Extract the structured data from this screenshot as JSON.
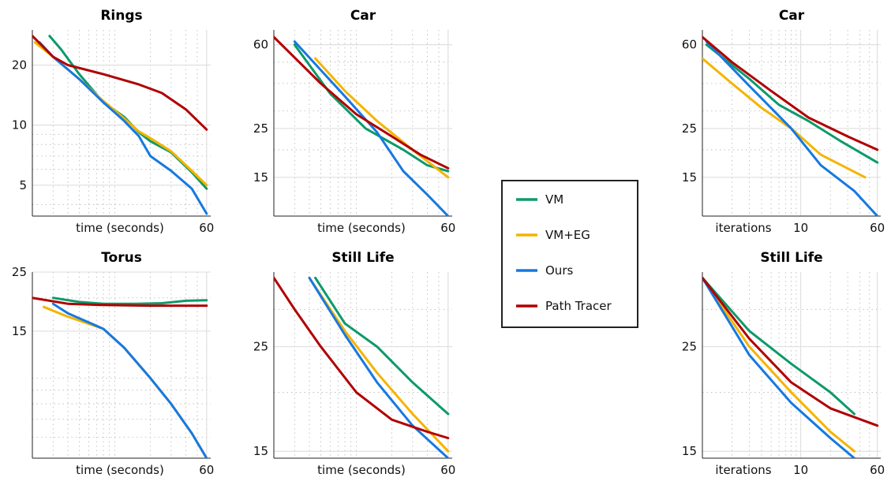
{
  "legend": {
    "entries": [
      {
        "name": "VM",
        "color": "#0d9a6a"
      },
      {
        "name": "VM+EG",
        "color": "#f4b400"
      },
      {
        "name": "Ours",
        "color": "#1679e0"
      },
      {
        "name": "Path Tracer",
        "color": "#b00000"
      }
    ]
  },
  "chart_data": [
    {
      "type": "line",
      "title": "Rings",
      "xlabel": "time (seconds)",
      "xscale": "log",
      "yscale": "log",
      "xlim": [
        2,
        65
      ],
      "ylim": [
        3.5,
        30
      ],
      "xticks": [
        60
      ],
      "yticks": [
        5,
        10,
        20
      ],
      "grid": true,
      "series": [
        {
          "name": "VM",
          "points": [
            [
              2.8,
              28
            ],
            [
              3.5,
              24
            ],
            [
              5,
              18
            ],
            [
              8,
              13
            ],
            [
              12,
              11
            ],
            [
              16,
              9.2
            ],
            [
              20,
              8.3
            ],
            [
              30,
              7.3
            ],
            [
              45,
              5.8
            ],
            [
              60,
              4.8
            ]
          ]
        },
        {
          "name": "VM+EG",
          "points": [
            [
              2.1,
              26
            ],
            [
              3,
              22
            ],
            [
              5,
              17
            ],
            [
              8,
              13.2
            ],
            [
              12,
              10.8
            ],
            [
              16,
              9.3
            ],
            [
              20,
              8.6
            ],
            [
              30,
              7.4
            ],
            [
              45,
              5.9
            ],
            [
              60,
              5
            ]
          ]
        },
        {
          "name": "Ours",
          "points": [
            [
              2.3,
              26
            ],
            [
              3,
              22
            ],
            [
              5,
              17
            ],
            [
              8,
              13
            ],
            [
              12,
              10.5
            ],
            [
              16,
              8.8
            ],
            [
              20,
              7
            ],
            [
              30,
              5.9
            ],
            [
              45,
              4.8
            ],
            [
              60,
              3.6
            ]
          ]
        },
        {
          "name": "Path Tracer",
          "points": [
            [
              2,
              28
            ],
            [
              3,
              22
            ],
            [
              4,
              20
            ],
            [
              8,
              18
            ],
            [
              16,
              16
            ],
            [
              25,
              14.5
            ],
            [
              40,
              12
            ],
            [
              60,
              9.5
            ]
          ]
        }
      ]
    },
    {
      "type": "line",
      "title": "Car",
      "xlabel": "time (seconds)",
      "xscale": "log",
      "yscale": "log",
      "xlim": [
        2,
        65
      ],
      "ylim": [
        10,
        70
      ],
      "xticks": [
        60
      ],
      "yticks": [
        15,
        25,
        60
      ],
      "grid": true,
      "series": [
        {
          "name": "VM",
          "points": [
            [
              3,
              60
            ],
            [
              6,
              36
            ],
            [
              12,
              25
            ],
            [
              25,
              20
            ],
            [
              40,
              17
            ],
            [
              60,
              16
            ]
          ]
        },
        {
          "name": "VM+EG",
          "points": [
            [
              4.5,
              52
            ],
            [
              8,
              37
            ],
            [
              15,
              27
            ],
            [
              30,
              20
            ],
            [
              60,
              15
            ]
          ]
        },
        {
          "name": "Ours",
          "points": [
            [
              3,
              62
            ],
            [
              8,
              35
            ],
            [
              15,
              24
            ],
            [
              25,
              16
            ],
            [
              40,
              12.5
            ],
            [
              60,
              10
            ]
          ]
        },
        {
          "name": "Path Tracer",
          "points": [
            [
              2,
              65
            ],
            [
              5,
              40
            ],
            [
              10,
              29
            ],
            [
              20,
              23
            ],
            [
              35,
              19
            ],
            [
              60,
              16.5
            ]
          ]
        }
      ]
    },
    {
      "type": "line",
      "title": "Car",
      "xlabel": "iterations",
      "xscale": "log",
      "yscale": "log",
      "xlim": [
        1,
        65
      ],
      "ylim": [
        10,
        70
      ],
      "xticks": [
        10,
        60
      ],
      "yticks": [
        15,
        25,
        60
      ],
      "grid": true,
      "series": [
        {
          "name": "VM",
          "points": [
            [
              1.1,
              60
            ],
            [
              3,
              42
            ],
            [
              6,
              32
            ],
            [
              12,
              27
            ],
            [
              25,
              22
            ],
            [
              60,
              17.5
            ]
          ]
        },
        {
          "name": "VM+EG",
          "points": [
            [
              1,
              52
            ],
            [
              2,
              40
            ],
            [
              4,
              31
            ],
            [
              8,
              25
            ],
            [
              16,
              19
            ],
            [
              45,
              15
            ]
          ]
        },
        {
          "name": "Ours",
          "points": [
            [
              1.1,
              62
            ],
            [
              3,
              39
            ],
            [
              8,
              25
            ],
            [
              16,
              17
            ],
            [
              35,
              13
            ],
            [
              60,
              10
            ]
          ]
        },
        {
          "name": "Path Tracer",
          "points": [
            [
              1,
              65
            ],
            [
              2,
              50
            ],
            [
              5,
              37
            ],
            [
              12,
              28
            ],
            [
              30,
              23
            ],
            [
              60,
              20
            ]
          ]
        }
      ]
    },
    {
      "type": "line",
      "title": "Torus",
      "xlabel": "time (seconds)",
      "xscale": "log",
      "yscale": "log",
      "xlim": [
        2,
        65
      ],
      "ylim": [
        5,
        25
      ],
      "xticks": [
        60
      ],
      "yticks": [
        15,
        25
      ],
      "grid": true,
      "series": [
        {
          "name": "VM",
          "points": [
            [
              3,
              20
            ],
            [
              5,
              19.3
            ],
            [
              8,
              19
            ],
            [
              15,
              19
            ],
            [
              25,
              19.1
            ],
            [
              40,
              19.5
            ],
            [
              60,
              19.6
            ]
          ]
        },
        {
          "name": "VM+EG",
          "points": [
            [
              2.5,
              18.5
            ],
            [
              4,
              17
            ],
            [
              8,
              15.3
            ],
            [
              12,
              13
            ],
            [
              20,
              10
            ],
            [
              30,
              8
            ],
            [
              45,
              6.2
            ],
            [
              60,
              5
            ]
          ]
        },
        {
          "name": "Ours",
          "points": [
            [
              3,
              19
            ],
            [
              4,
              17.5
            ],
            [
              8,
              15.3
            ],
            [
              12,
              13
            ],
            [
              20,
              10
            ],
            [
              30,
              8
            ],
            [
              45,
              6.2
            ],
            [
              60,
              5
            ]
          ]
        },
        {
          "name": "Path Tracer",
          "points": [
            [
              2,
              20
            ],
            [
              4,
              19
            ],
            [
              8,
              18.8
            ],
            [
              20,
              18.7
            ],
            [
              60,
              18.7
            ]
          ]
        }
      ]
    },
    {
      "type": "line",
      "title": "Still Life",
      "xlabel": "time (seconds)",
      "xscale": "log",
      "yscale": "log",
      "xlim": [
        2,
        65
      ],
      "ylim": [
        14.5,
        36
      ],
      "xticks": [
        60
      ],
      "yticks": [
        15,
        25
      ],
      "grid": true,
      "series": [
        {
          "name": "VM",
          "points": [
            [
              4.5,
              35
            ],
            [
              8,
              28
            ],
            [
              15,
              25
            ],
            [
              30,
              21
            ],
            [
              60,
              18
            ]
          ]
        },
        {
          "name": "VM+EG",
          "points": [
            [
              4,
              35
            ],
            [
              8,
              27
            ],
            [
              15,
              22
            ],
            [
              30,
              18
            ],
            [
              60,
              15
            ]
          ]
        },
        {
          "name": "Ours",
          "points": [
            [
              4,
              35
            ],
            [
              8,
              26.5
            ],
            [
              15,
              21
            ],
            [
              30,
              17
            ],
            [
              60,
              14.5
            ]
          ]
        },
        {
          "name": "Path Tracer",
          "points": [
            [
              2,
              35
            ],
            [
              3,
              30
            ],
            [
              5,
              25
            ],
            [
              10,
              20
            ],
            [
              20,
              17.5
            ],
            [
              40,
              16.5
            ],
            [
              60,
              16
            ]
          ]
        }
      ]
    },
    {
      "type": "line",
      "title": "Still Life",
      "xlabel": "iterations",
      "xscale": "log",
      "yscale": "log",
      "xlim": [
        1,
        65
      ],
      "ylim": [
        14.5,
        36
      ],
      "xticks": [
        10,
        60
      ],
      "yticks": [
        15,
        25
      ],
      "grid": true,
      "series": [
        {
          "name": "VM",
          "points": [
            [
              1,
              35
            ],
            [
              3,
              27
            ],
            [
              8,
              23
            ],
            [
              20,
              20
            ],
            [
              35,
              18
            ]
          ]
        },
        {
          "name": "VM+EG",
          "points": [
            [
              1,
              35
            ],
            [
              3,
              25
            ],
            [
              8,
              20
            ],
            [
              20,
              16.5
            ],
            [
              35,
              15
            ]
          ]
        },
        {
          "name": "Ours",
          "points": [
            [
              1,
              35
            ],
            [
              3,
              24
            ],
            [
              8,
              19
            ],
            [
              20,
              16
            ],
            [
              35,
              14.5
            ]
          ]
        },
        {
          "name": "Path Tracer",
          "points": [
            [
              1,
              35
            ],
            [
              3,
              26
            ],
            [
              8,
              21
            ],
            [
              20,
              18.5
            ],
            [
              60,
              17
            ]
          ]
        }
      ]
    }
  ]
}
